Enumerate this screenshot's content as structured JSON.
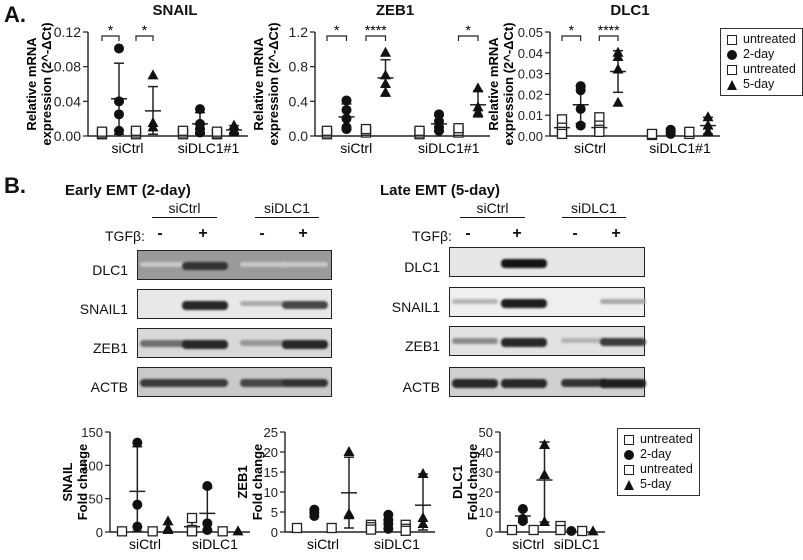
{
  "panel_a": {
    "letter": "A."
  },
  "panel_b": {
    "letter": "B."
  },
  "legend": {
    "items": [
      {
        "label": "untreated",
        "symbol": "square-open"
      },
      {
        "label": "2-day",
        "symbol": "circle"
      },
      {
        "label": "untreated",
        "symbol": "square-open"
      },
      {
        "label": "5-day",
        "symbol": "triangle"
      }
    ]
  },
  "blots": {
    "early": {
      "title": "Early EMT (2-day)",
      "group1": "siCtrl",
      "group2": "siDLC1",
      "tgf_label": "TGFβ:",
      "signs": [
        "-",
        "+",
        "-",
        "+"
      ],
      "bands": [
        {
          "label": "DLC1",
          "intensities": [
            0.1,
            0.85,
            0.1,
            0.1
          ],
          "bg": "#9a9a9a"
        },
        {
          "label": "SNAIL1",
          "intensities": [
            0.0,
            0.9,
            0.25,
            0.75
          ],
          "bg": "#e8e8e8"
        },
        {
          "label": "ZEB1",
          "intensities": [
            0.55,
            0.9,
            0.35,
            0.9
          ],
          "bg": "#d8d8d8"
        },
        {
          "label": "ACTB",
          "intensities": [
            0.8,
            0.8,
            0.75,
            0.85
          ],
          "bg": "#c9c9c9"
        }
      ]
    },
    "late": {
      "title": "Late EMT (5-day)",
      "group1": "siCtrl",
      "group2": "siDLC1",
      "tgf_label": "TGFβ:",
      "signs": [
        "-",
        "+",
        "-",
        "+"
      ],
      "bands": [
        {
          "label": "DLC1",
          "intensities": [
            0.0,
            1.0,
            0.0,
            0.0
          ],
          "bg": "#e6e6e6"
        },
        {
          "label": "SNAIL1",
          "intensities": [
            0.2,
            0.95,
            0.0,
            0.25
          ],
          "bg": "#efefef"
        },
        {
          "label": "ZEB1",
          "intensities": [
            0.4,
            0.9,
            0.2,
            0.8
          ],
          "bg": "#e2e2e2"
        },
        {
          "label": "ACTB",
          "intensities": [
            0.9,
            0.9,
            0.85,
            0.95
          ],
          "bg": "#d0d0d0"
        }
      ]
    }
  },
  "chart_data": [
    {
      "type": "scatter",
      "title": "SNAIL",
      "ylabel": "Relative mRNA expression (2^-ΔCt)",
      "ylim": [
        0,
        0.12
      ],
      "yticks": [
        "0.00",
        "0.04",
        "0.08",
        "0.12"
      ],
      "ytick_values": [
        0,
        0.04,
        0.08,
        0.12
      ],
      "categories": [
        "siCtrl",
        "siDLC1#1"
      ],
      "series": [
        {
          "name": "untreated (2-day)",
          "symbol": "square-open",
          "group": 0,
          "values": [
            0.002,
            0.003,
            0.005
          ]
        },
        {
          "name": "2-day",
          "symbol": "circle",
          "group": 0,
          "values": [
            0.101,
            0.04,
            0.025,
            0.006
          ],
          "mean": 0.043,
          "sd_hi": 0.084,
          "sd_lo": 0.002
        },
        {
          "name": "untreated (5-day)",
          "symbol": "square-open",
          "group": 0,
          "values": [
            0.002,
            0.004,
            0.006
          ]
        },
        {
          "name": "5-day",
          "symbol": "triangle",
          "group": 0,
          "values": [
            0.07,
            0.015,
            0.01
          ],
          "mean": 0.029,
          "sd_hi": 0.057,
          "sd_lo": 0.002
        },
        {
          "name": "untreated (2-day)",
          "symbol": "square-open",
          "group": 1,
          "values": [
            0.002,
            0.004,
            0.006
          ]
        },
        {
          "name": "2-day",
          "symbol": "circle",
          "group": 1,
          "values": [
            0.031,
            0.014,
            0.008,
            0.004
          ],
          "mean": 0.014,
          "sd_hi": 0.027,
          "sd_lo": 0.002
        },
        {
          "name": "untreated (5-day)",
          "symbol": "square-open",
          "group": 1,
          "values": [
            0.002,
            0.003,
            0.005
          ]
        },
        {
          "name": "5-day",
          "symbol": "triangle",
          "group": 1,
          "values": [
            0.012,
            0.007,
            0.004
          ],
          "mean": 0.007,
          "sd_hi": 0.012,
          "sd_lo": 0.002
        }
      ],
      "significance": [
        {
          "from": 0,
          "to": 1,
          "label": "*"
        },
        {
          "from": 2,
          "to": 3,
          "label": "*"
        }
      ]
    },
    {
      "type": "scatter",
      "title": "ZEB1",
      "ylabel": "Relative mRNA expression (2^-ΔCt)",
      "ylim": [
        0,
        1.2
      ],
      "yticks": [
        "0.0",
        "0.4",
        "0.8",
        "1.2"
      ],
      "ytick_values": [
        0,
        0.4,
        0.8,
        1.2
      ],
      "categories": [
        "siCtrl",
        "siDLC1#1"
      ],
      "series": [
        {
          "name": "untreated (2-day)",
          "symbol": "square-open",
          "group": 0,
          "values": [
            0.02,
            0.04,
            0.06
          ]
        },
        {
          "name": "2-day",
          "symbol": "circle",
          "group": 0,
          "values": [
            0.41,
            0.3,
            0.2,
            0.1,
            0.08
          ],
          "mean": 0.22,
          "sd_hi": 0.37,
          "sd_lo": 0.08
        },
        {
          "name": "untreated (5-day)",
          "symbol": "square-open",
          "group": 0,
          "values": [
            0.04,
            0.06,
            0.08
          ]
        },
        {
          "name": "5-day",
          "symbol": "triangle",
          "group": 0,
          "values": [
            0.96,
            0.7,
            0.6,
            0.5
          ],
          "mean": 0.67,
          "sd_hi": 0.88,
          "sd_lo": 0.46
        },
        {
          "name": "untreated (2-day)",
          "symbol": "square-open",
          "group": 1,
          "values": [
            0.02,
            0.04,
            0.06
          ]
        },
        {
          "name": "2-day",
          "symbol": "circle",
          "group": 1,
          "values": [
            0.25,
            0.17,
            0.1,
            0.06
          ],
          "mean": 0.14,
          "sd_hi": 0.23,
          "sd_lo": 0.05
        },
        {
          "name": "untreated (5-day)",
          "symbol": "square-open",
          "group": 1,
          "values": [
            0.04,
            0.06,
            0.09
          ]
        },
        {
          "name": "5-day",
          "symbol": "triangle",
          "group": 1,
          "values": [
            0.55,
            0.33,
            0.27
          ],
          "mean": 0.36,
          "sd_hi": 0.52,
          "sd_lo": 0.22
        }
      ],
      "significance": [
        {
          "from": 0,
          "to": 1,
          "label": "*"
        },
        {
          "from": 2,
          "to": 3,
          "label": "****"
        },
        {
          "from": 6,
          "to": 7,
          "label": "*"
        }
      ]
    },
    {
      "type": "scatter",
      "title": "DLC1",
      "ylabel": "Relative mRNA expression (2^-ΔCt)",
      "ylim": [
        0,
        0.05
      ],
      "yticks": [
        "0.00",
        "0.01",
        "0.02",
        "0.03",
        "0.04",
        "0.05"
      ],
      "ytick_values": [
        0,
        0.01,
        0.02,
        0.03,
        0.04,
        0.05
      ],
      "categories": [
        "siCtrl",
        "siDLC1#1"
      ],
      "series": [
        {
          "name": "untreated (2-day)",
          "symbol": "square-open",
          "group": 0,
          "values": [
            0.008,
            0.004,
            0.002,
            0.001
          ],
          "mean": 0.004,
          "sd_hi": 0.007,
          "sd_lo": 0.001
        },
        {
          "name": "2-day",
          "symbol": "circle",
          "group": 0,
          "values": [
            0.024,
            0.022,
            0.013,
            0.005
          ],
          "mean": 0.015,
          "sd_hi": 0.024,
          "sd_lo": 0.006
        },
        {
          "name": "untreated (5-day)",
          "symbol": "square-open",
          "group": 0,
          "values": [
            0.009,
            0.005,
            0.003,
            0.002
          ],
          "mean": 0.004,
          "sd_hi": 0.007,
          "sd_lo": 0.002
        },
        {
          "name": "5-day",
          "symbol": "triangle",
          "group": 0,
          "values": [
            0.04,
            0.038,
            0.032,
            0.016
          ],
          "mean": 0.031,
          "sd_hi": 0.041,
          "sd_lo": 0.021
        },
        {
          "name": "untreated (2-day)",
          "symbol": "square-open",
          "group": 1,
          "values": [
            0.0005,
            0.001
          ]
        },
        {
          "name": "2-day",
          "symbol": "circle",
          "group": 1,
          "values": [
            0.003,
            0.002,
            0.001
          ]
        },
        {
          "name": "untreated (5-day)",
          "symbol": "square-open",
          "group": 1,
          "values": [
            0.001,
            0.002
          ]
        },
        {
          "name": "5-day",
          "symbol": "triangle",
          "group": 1,
          "values": [
            0.009,
            0.005,
            0.002
          ],
          "mean": 0.005,
          "sd_hi": 0.009,
          "sd_lo": 0.001
        }
      ],
      "significance": [
        {
          "from": 0,
          "to": 1,
          "label": "*"
        },
        {
          "from": 2,
          "to": 3,
          "label": "****"
        }
      ]
    },
    {
      "type": "scatter",
      "title": "",
      "ylabel": "SNAIL Fold change",
      "ylim": [
        0,
        150
      ],
      "yticks": [
        "0",
        "50",
        "100",
        "150"
      ],
      "ytick_values": [
        0,
        50,
        100,
        150
      ],
      "categories": [
        "siCtrl",
        "siDLC1"
      ],
      "series": [
        {
          "name": "untreated (2-day)",
          "symbol": "square-open",
          "group": 0,
          "values": [
            1
          ]
        },
        {
          "name": "2-day",
          "symbol": "circle",
          "group": 0,
          "values": [
            134,
            41,
            8
          ],
          "mean": 61,
          "sd_hi": 128,
          "sd_lo": 1
        },
        {
          "name": "untreated (5-day)",
          "symbol": "square-open",
          "group": 0,
          "values": [
            1
          ]
        },
        {
          "name": "5-day",
          "symbol": "triangle",
          "group": 0,
          "values": [
            16,
            5,
            3
          ]
        },
        {
          "name": "untreated (2-day)",
          "symbol": "square-open",
          "group": 1,
          "values": [
            21,
            3,
            1
          ],
          "mean": 8,
          "sd_hi": 18,
          "sd_lo": 1
        },
        {
          "name": "2-day",
          "symbol": "circle",
          "group": 1,
          "values": [
            69,
            13,
            3
          ],
          "mean": 28,
          "sd_hi": 66,
          "sd_lo": 1
        },
        {
          "name": "untreated (5-day)",
          "symbol": "square-open",
          "group": 1,
          "values": [
            1
          ]
        },
        {
          "name": "5-day",
          "symbol": "triangle",
          "group": 1,
          "values": [
            1
          ]
        }
      ]
    },
    {
      "type": "scatter",
      "title": "",
      "ylabel": "ZEB1 Fold change",
      "ylim": [
        0,
        25
      ],
      "yticks": [
        "0",
        "5",
        "10",
        "15",
        "20",
        "25"
      ],
      "ytick_values": [
        0,
        5,
        10,
        15,
        20,
        25
      ],
      "categories": [
        "siCtrl",
        "siDLC1"
      ],
      "series": [
        {
          "name": "untreated (2-day)",
          "symbol": "square-open",
          "group": 0,
          "values": [
            1
          ]
        },
        {
          "name": "2-day",
          "symbol": "circle",
          "group": 0,
          "values": [
            5.6,
            4.8,
            4.0
          ]
        },
        {
          "name": "untreated (5-day)",
          "symbol": "square-open",
          "group": 0,
          "values": [
            1
          ]
        },
        {
          "name": "5-day",
          "symbol": "triangle",
          "group": 0,
          "values": [
            20,
            4.5,
            4.2
          ],
          "mean": 9.8,
          "sd_hi": 18.7,
          "sd_lo": 1
        },
        {
          "name": "untreated (2-day)",
          "symbol": "square-open",
          "group": 1,
          "values": [
            1.8,
            1.2,
            0.6
          ]
        },
        {
          "name": "2-day",
          "symbol": "circle",
          "group": 1,
          "values": [
            4.3,
            3.0,
            2.0,
            0.8
          ]
        },
        {
          "name": "untreated (5-day)",
          "symbol": "square-open",
          "group": 1,
          "values": [
            1.8,
            0.8,
            0.3
          ]
        },
        {
          "name": "5-day",
          "symbol": "triangle",
          "group": 1,
          "values": [
            14.5,
            3.5,
            2.0
          ],
          "mean": 6.7,
          "sd_hi": 14.5,
          "sd_lo": 0.5
        }
      ]
    },
    {
      "type": "scatter",
      "title": "",
      "ylabel": "DLC1 Fold change",
      "ylim": [
        0,
        50
      ],
      "yticks": [
        "0",
        "10",
        "20",
        "30",
        "40",
        "50"
      ],
      "ytick_values": [
        0,
        10,
        20,
        30,
        40,
        50
      ],
      "categories": [
        "siCtrl",
        "siDLC1"
      ],
      "series": [
        {
          "name": "untreated (2-day)",
          "symbol": "square-open",
          "group": 0,
          "values": [
            1
          ]
        },
        {
          "name": "2-day",
          "symbol": "circle",
          "group": 0,
          "values": [
            11.5,
            6.5,
            5.5
          ],
          "mean": 8,
          "sd_hi": 11,
          "sd_lo": 5
        },
        {
          "name": "untreated (5-day)",
          "symbol": "square-open",
          "group": 0,
          "values": [
            1
          ]
        },
        {
          "name": "5-day",
          "symbol": "triangle",
          "group": 0,
          "values": [
            43.5,
            28.5,
            5
          ],
          "mean": 26,
          "sd_hi": 45,
          "sd_lo": 5
        },
        {
          "name": "untreated (2-day)",
          "symbol": "square-open",
          "group": 1,
          "values": [
            3,
            1
          ]
        },
        {
          "name": "2-day",
          "symbol": "circle",
          "group": 1,
          "values": [
            0.5
          ]
        },
        {
          "name": "untreated (5-day)",
          "symbol": "square-open",
          "group": 1,
          "values": [
            0.5
          ]
        },
        {
          "name": "5-day",
          "symbol": "triangle",
          "group": 1,
          "values": [
            0.3
          ]
        }
      ]
    }
  ]
}
